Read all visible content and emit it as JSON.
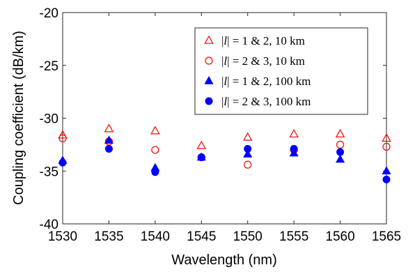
{
  "chart_data": {
    "type": "scatter",
    "title": "",
    "xlabel": "Wavelength (nm)",
    "ylabel": "Coupling coefficient (dB/km)",
    "xlim": [
      1530,
      1565
    ],
    "ylim": [
      -40,
      -20
    ],
    "xticks": [
      1530,
      1535,
      1540,
      1545,
      1550,
      1555,
      1560,
      1565
    ],
    "yticks": [
      -40,
      -35,
      -30,
      -25,
      -20
    ],
    "x": [
      1530,
      1535,
      1540,
      1545,
      1550,
      1555,
      1560,
      1565
    ],
    "grid": false,
    "legend_position": "top-right",
    "series": [
      {
        "name": "|l| = 1 & 2, 10 km",
        "l_values": "1 & 2",
        "distance": "10 km",
        "marker": "triangle-open",
        "color": "#ff0000",
        "values": [
          -31.6,
          -31.0,
          -31.2,
          -32.6,
          -31.8,
          -31.5,
          -31.5,
          -31.9
        ]
      },
      {
        "name": "|l| = 2 & 3, 10 km",
        "l_values": "2 & 3",
        "distance": "10 km",
        "marker": "circle-open",
        "color": "#ff0000",
        "values": [
          -31.9,
          -32.2,
          -33.0,
          -33.7,
          -34.4,
          -33.0,
          -32.5,
          -32.7
        ]
      },
      {
        "name": "|l| = 1 & 2, 100 km",
        "l_values": "1 & 2",
        "distance": "100 km",
        "marker": "triangle-filled",
        "color": "#0000ff",
        "values": [
          -34.0,
          -32.1,
          -34.7,
          -33.7,
          -33.4,
          -33.3,
          -33.9,
          -35.0
        ]
      },
      {
        "name": "|l| = 2 & 3, 100 km",
        "l_values": "2 & 3",
        "distance": "100 km",
        "marker": "circle-filled",
        "color": "#0000ff",
        "values": [
          -34.2,
          -32.9,
          -35.1,
          -33.7,
          -32.9,
          -32.9,
          -33.2,
          -35.8
        ]
      }
    ]
  }
}
